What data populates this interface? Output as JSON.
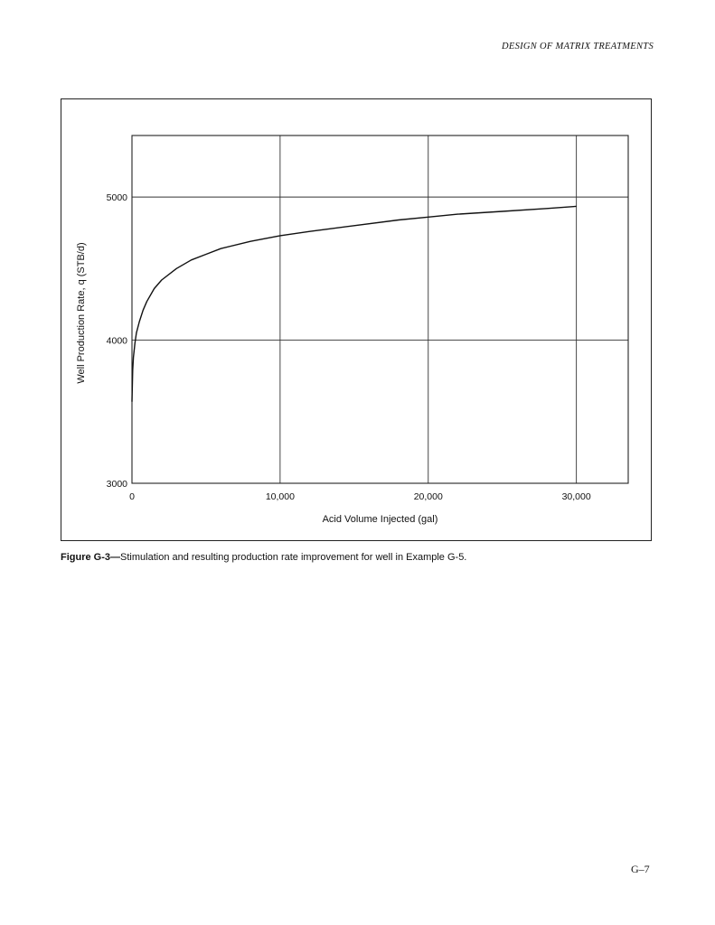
{
  "header": {
    "running_head": "DESIGN OF MATRIX TREATMENTS"
  },
  "figure": {
    "caption_label": "Figure G-3—",
    "caption_text": "Stimulation and resulting production rate improvement for well in Example G-5."
  },
  "page": {
    "number": "G–7"
  },
  "chart_data": {
    "type": "line",
    "xlabel": "Acid Volume Injected (gal)",
    "ylabel": "Well Production Rate, q (STB/d)",
    "xlim": [
      0,
      33500
    ],
    "ylim": [
      3000,
      5430
    ],
    "x_ticks": [
      0,
      10000,
      20000,
      30000
    ],
    "x_tick_labels": [
      "0",
      "10,000",
      "20,000",
      "30,000"
    ],
    "y_ticks": [
      3000,
      4000,
      5000
    ],
    "y_tick_labels": [
      "3000",
      "4000",
      "5000"
    ],
    "grid": true,
    "series": [
      {
        "color": "#111111",
        "x": [
          0,
          50,
          100,
          200,
          300,
          500,
          750,
          1000,
          1500,
          2000,
          3000,
          4000,
          5000,
          6000,
          8000,
          10000,
          12000,
          15000,
          18000,
          20000,
          22000,
          25000,
          28000,
          30000
        ],
        "y": [
          3570,
          3790,
          3880,
          3980,
          4050,
          4130,
          4210,
          4270,
          4360,
          4420,
          4500,
          4560,
          4600,
          4640,
          4690,
          4730,
          4760,
          4800,
          4840,
          4860,
          4880,
          4900,
          4920,
          4935
        ]
      }
    ]
  }
}
